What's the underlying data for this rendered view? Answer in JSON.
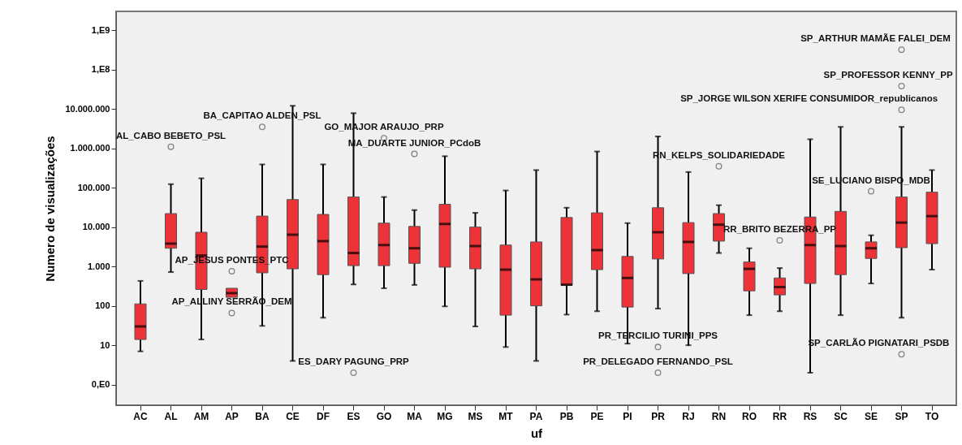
{
  "chart_data": {
    "type": "box",
    "xlabel": "uf",
    "ylabel": "Numero de visualizações",
    "color": "#ee3338",
    "categories": [
      "AC",
      "AL",
      "AM",
      "AP",
      "BA",
      "CE",
      "DF",
      "ES",
      "GO",
      "MA",
      "MG",
      "MS",
      "MT",
      "PA",
      "PB",
      "PE",
      "PI",
      "PR",
      "RJ",
      "RN",
      "RO",
      "RR",
      "RS",
      "SC",
      "SE",
      "SP",
      "TO"
    ],
    "ylim": [
      0.3,
      3000000000
    ],
    "yticks": [
      {
        "value": 1,
        "label": "0,E0"
      },
      10,
      100,
      {
        "value": 1000,
        "label": "1.000"
      },
      {
        "value": 10000,
        "label": "10.000"
      },
      {
        "value": 100000,
        "label": "100.000"
      },
      {
        "value": 1000000,
        "label": "1.000.000"
      },
      {
        "value": 10000000,
        "label": "10.000.000"
      },
      {
        "value": 100000000,
        "label": "1,E8"
      },
      {
        "value": 1000000000,
        "label": "1,E9"
      }
    ],
    "log": true,
    "grid": false,
    "marker": "circle",
    "series": [
      {
        "type": "scatter",
        "color": "#555555",
        "x": [
          "AL",
          "AP",
          "AP",
          "BA",
          "ES",
          "GO",
          "MA",
          "PR",
          "PR",
          "RN",
          "RR",
          "SE",
          "SP",
          "SP",
          "SP",
          "SP"
        ],
        "values": [
          1100000,
          760,
          66,
          3500000,
          2,
          1800000,
          720000,
          9,
          2,
          350000,
          4600,
          81000,
          320000000,
          38000000,
          9500000,
          5.9
        ]
      }
    ],
    "boxes": [
      {
        "low": 7,
        "q1": 14,
        "median": 30,
        "q3": 112,
        "high": 430
      },
      {
        "low": 720,
        "q1": 2900,
        "median": 3800,
        "q3": 22000,
        "high": 123000
      },
      {
        "low": 14,
        "q1": 260,
        "median": 1900,
        "q3": 7400,
        "high": 173000
      },
      {
        "low": 165,
        "q1": 165,
        "median": 210,
        "q3": 280,
        "high": 280
      },
      {
        "low": 31,
        "q1": 690,
        "median": 3200,
        "q3": 19000,
        "high": 390000
      },
      {
        "low": 4,
        "q1": 870,
        "median": 6400,
        "q3": 50000,
        "high": 12000000
      },
      {
        "low": 50,
        "q1": 620,
        "median": 4400,
        "q3": 21000,
        "high": 390000
      },
      {
        "low": 350,
        "q1": 1050,
        "median": 2200,
        "q3": 58000,
        "high": 7800000
      },
      {
        "low": 280,
        "q1": 1050,
        "median": 3500,
        "q3": 12600,
        "high": 58000
      },
      {
        "low": 340,
        "q1": 1200,
        "median": 2900,
        "q3": 10400,
        "high": 27000
      },
      {
        "low": 97,
        "q1": 960,
        "median": 12000,
        "q3": 38000,
        "high": 630000
      },
      {
        "low": 30,
        "q1": 870,
        "median": 3300,
        "q3": 10000,
        "high": 23000
      },
      {
        "low": 9,
        "q1": 58,
        "median": 830,
        "q3": 3500,
        "high": 85000
      },
      {
        "low": 4,
        "q1": 100,
        "median": 470,
        "q3": 4200,
        "high": 280000
      },
      {
        "low": 60,
        "q1": 330,
        "median": 345,
        "q3": 17500,
        "high": 31000
      },
      {
        "low": 73,
        "q1": 830,
        "median": 2600,
        "q3": 23000,
        "high": 830000
      },
      {
        "low": 11,
        "q1": 93,
        "median": 510,
        "q3": 1800,
        "high": 12600
      },
      {
        "low": 85,
        "q1": 1550,
        "median": 7400,
        "q3": 31000,
        "high": 2000000
      },
      {
        "low": 10,
        "q1": 660,
        "median": 4200,
        "q3": 13000,
        "high": 250000
      },
      {
        "low": 2200,
        "q1": 4400,
        "median": 11500,
        "q3": 22000,
        "high": 36000
      },
      {
        "low": 58,
        "q1": 240,
        "median": 870,
        "q3": 1300,
        "high": 2900
      },
      {
        "low": 73,
        "q1": 190,
        "median": 300,
        "q3": 510,
        "high": 910
      },
      {
        "low": 2,
        "q1": 370,
        "median": 3500,
        "q3": 18000,
        "high": 1700000
      },
      {
        "low": 58,
        "q1": 620,
        "median": 3300,
        "q3": 25000,
        "high": 3500000
      },
      {
        "low": 370,
        "q1": 1600,
        "median": 2900,
        "q3": 4200,
        "high": 6200
      },
      {
        "low": 50,
        "q1": 3000,
        "median": 13000,
        "q3": 58000,
        "high": 3500000
      },
      {
        "low": 830,
        "q1": 3800,
        "median": 19000,
        "q3": 77000,
        "high": 280000
      }
    ],
    "annotations": [
      {
        "text": "AL_CABO BEBETO_PSL",
        "x": "AL",
        "y": 1100000
      },
      {
        "text": "AP_JESUS PONTES_PTC",
        "x": "AP",
        "y": 760
      },
      {
        "text": "AP_ALLINY SERRÃO_DEM",
        "x": "AP",
        "y": 66
      },
      {
        "text": "BA_CAPITAO ALDEN_PSL",
        "x": "BA",
        "y": 3500000
      },
      {
        "text": "ES_DARY PAGUNG_PRP",
        "x": "ES",
        "y": 2
      },
      {
        "text": "GO_MAJOR ARAUJO_PRP",
        "x": "GO",
        "y": 1800000
      },
      {
        "text": "MA_DUARTE JUNIOR_PCdoB",
        "x": "MA",
        "y": 720000
      },
      {
        "text": "PR_TERCILIO TURINI_PPS",
        "x": "PR",
        "y": 9
      },
      {
        "text": "PR_DELEGADO FERNANDO_PSL",
        "x": "PR",
        "y": 2
      },
      {
        "text": "RN_KELPS_SOLIDARIEDADE",
        "x": "RN",
        "y": 350000
      },
      {
        "text": "RR_BRITO BEZERRA_PP",
        "x": "RR",
        "y": 4600
      },
      {
        "text": "SE_LUCIANO BISPO_MDB",
        "x": "SE",
        "y": 81000
      },
      {
        "text": "SP_ARTHUR MAMÃE FALEI_DEM",
        "x": "SP",
        "y": 320000000
      },
      {
        "text": "SP_PROFESSOR KENNY_PP",
        "x": "SP",
        "y": 38000000
      },
      {
        "text": "SP_JORGE WILSON XERIFE CONSUMIDOR_republicanos",
        "x": "SP",
        "y": 9500000
      },
      {
        "text": "SP_CARLÃO PIGNATARI_PSDB",
        "x": "SP",
        "y": 5.9
      }
    ]
  }
}
